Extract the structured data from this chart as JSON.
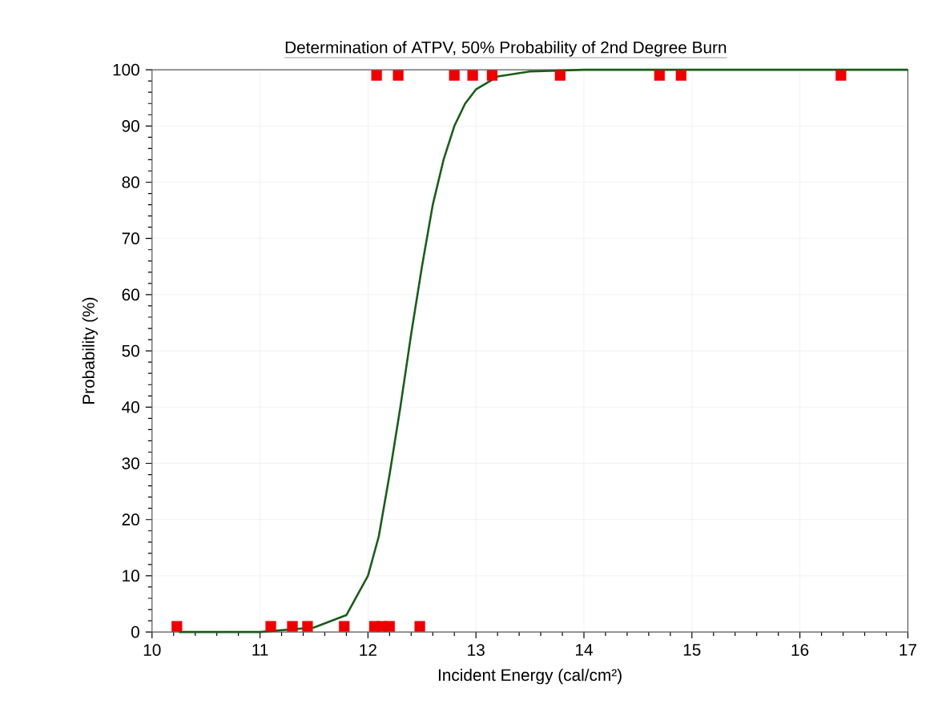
{
  "chart_data": {
    "type": "scatter",
    "title": "Determination of ATPV, 50% Probability of 2nd Degree Burn",
    "xlabel": "Incident Energy (cal/cm²)",
    "ylabel": "Probability (%)",
    "xlim": [
      10,
      17
    ],
    "ylim": [
      0,
      100
    ],
    "xticks": [
      10,
      11,
      12,
      13,
      14,
      15,
      16,
      17
    ],
    "yticks": [
      0,
      10,
      20,
      30,
      40,
      50,
      60,
      70,
      80,
      90,
      100
    ],
    "grid": true,
    "marker": "square",
    "series": [
      {
        "color": "#ee0000",
        "x": [
          10.23,
          11.1,
          11.3,
          11.44,
          11.78,
          12.06,
          12.13,
          12.2,
          12.48,
          12.08,
          12.28,
          12.8,
          12.97,
          13.15,
          13.78,
          14.7,
          14.9,
          16.38
        ],
        "values": [
          1,
          1,
          1,
          1,
          1,
          1,
          1,
          1,
          1,
          99,
          99,
          99,
          99,
          99,
          99,
          99,
          99,
          99
        ]
      },
      {
        "type": "line",
        "color": "#1a5c1a",
        "marker": "none",
        "x": [
          10.25,
          11.0,
          11.5,
          11.8,
          12.0,
          12.1,
          12.2,
          12.3,
          12.4,
          12.5,
          12.6,
          12.7,
          12.8,
          12.9,
          13.0,
          13.2,
          13.5,
          14.0,
          17.0
        ],
        "values": [
          0,
          0,
          0.8,
          3,
          10,
          17,
          28,
          40,
          53,
          65,
          76,
          84,
          90,
          94,
          96.5,
          98.8,
          99.7,
          100,
          100
        ]
      }
    ]
  }
}
